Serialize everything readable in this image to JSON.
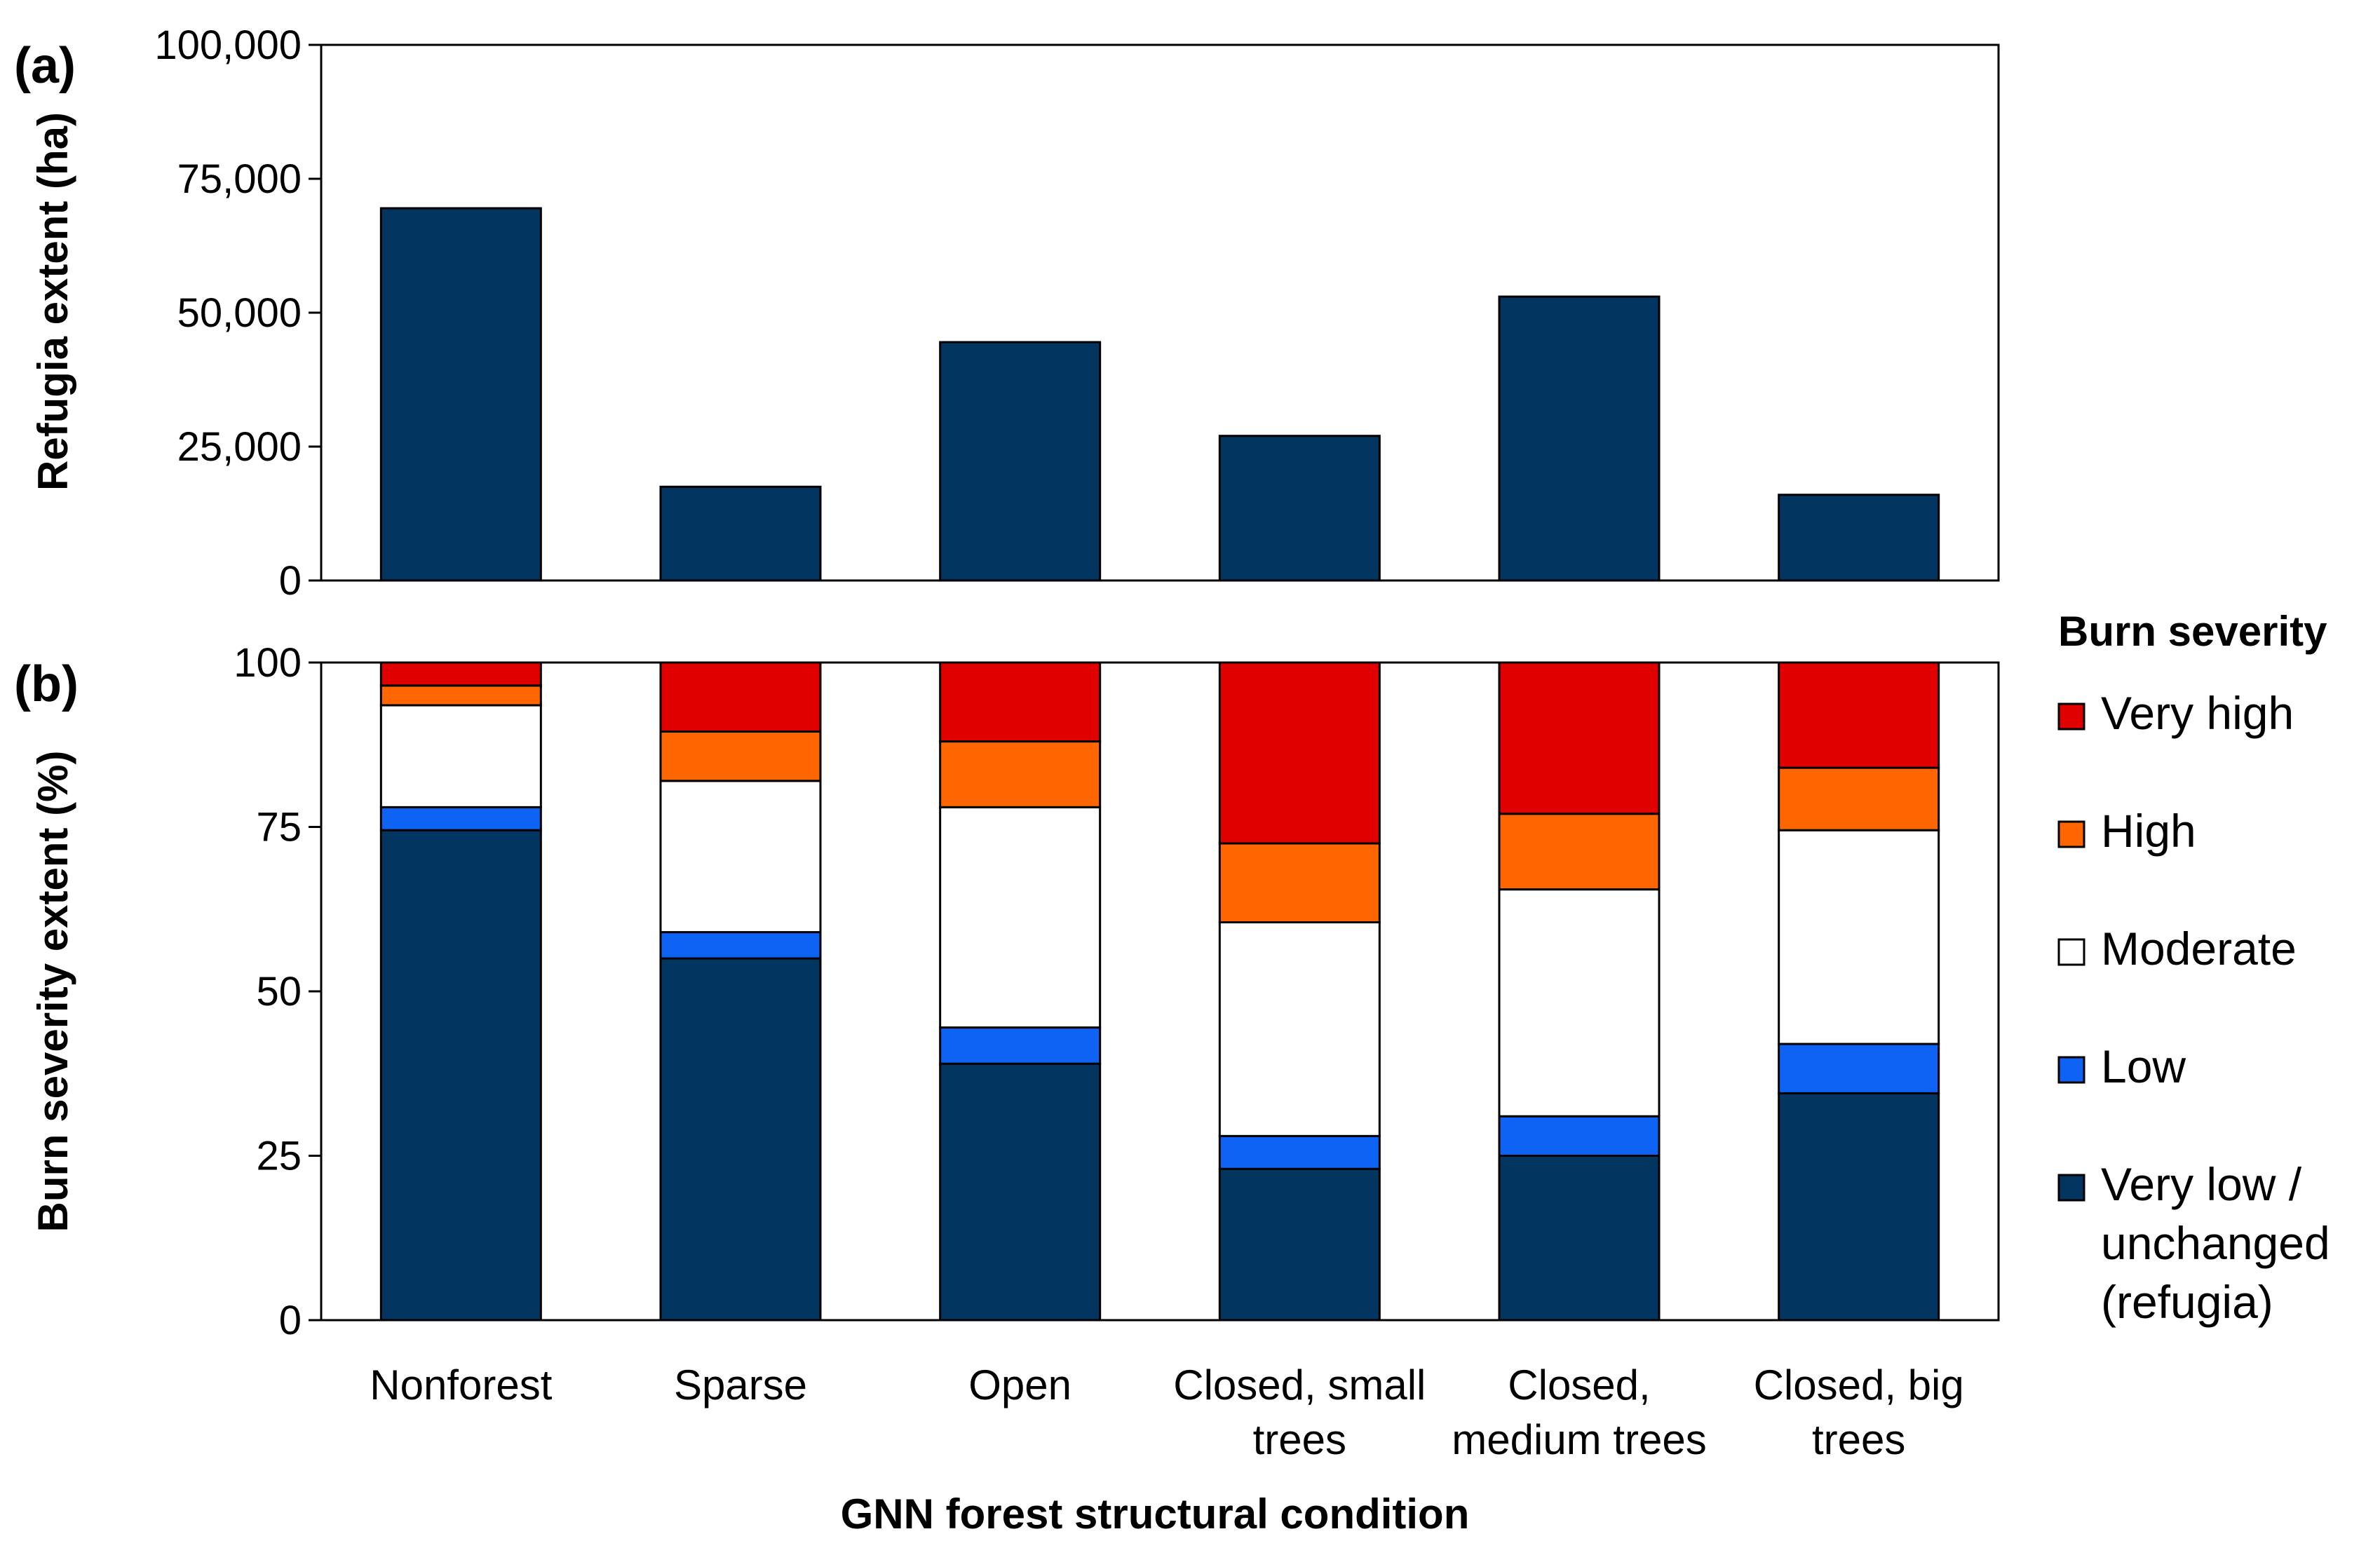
{
  "chart_data": [
    {
      "panel_label": "(a)",
      "type": "bar",
      "ylabel": "Refugia extent (ha)",
      "ylim": [
        0,
        100000
      ],
      "yticks": [
        {
          "value": 0,
          "label": "0"
        },
        {
          "value": 25000,
          "label": "25,000"
        },
        {
          "value": 50000,
          "label": "50,000"
        },
        {
          "value": 75000,
          "label": "75,000"
        },
        {
          "value": 100000,
          "label": "100,000"
        }
      ],
      "categories": [
        "Nonforest",
        "Sparse",
        "Open",
        "Closed, small trees",
        "Closed, medium trees",
        "Closed, big trees"
      ],
      "values": [
        69500,
        17500,
        44500,
        27000,
        53000,
        16000
      ],
      "bar_color": "#02355f",
      "grid": false
    },
    {
      "panel_label": "(b)",
      "type": "bar",
      "stacked": true,
      "ylabel": "Burn severity extent (%)",
      "xlabel": "GNN forest structural condition",
      "ylim": [
        0,
        100
      ],
      "yticks": [
        {
          "value": 0,
          "label": "0"
        },
        {
          "value": 25,
          "label": "25"
        },
        {
          "value": 50,
          "label": "50"
        },
        {
          "value": 75,
          "label": "75"
        },
        {
          "value": 100,
          "label": "100"
        }
      ],
      "categories": [
        {
          "lines": [
            "Nonforest"
          ]
        },
        {
          "lines": [
            "Sparse"
          ]
        },
        {
          "lines": [
            "Open"
          ]
        },
        {
          "lines": [
            "Closed, small",
            "trees"
          ]
        },
        {
          "lines": [
            "Closed,",
            "medium trees"
          ]
        },
        {
          "lines": [
            "Closed, big",
            "trees"
          ]
        }
      ],
      "series": [
        {
          "name": "Very low / unchanged (refugia)",
          "color": "#02355f",
          "values": [
            74.5,
            55,
            39,
            23,
            25,
            34.5
          ]
        },
        {
          "name": "Low",
          "color": "#0f63f4",
          "values": [
            3.5,
            4,
            5.5,
            5,
            6,
            7.5
          ]
        },
        {
          "name": "Moderate",
          "color": "#ffffff",
          "values": [
            15.5,
            23,
            33.5,
            32.5,
            34.5,
            32.5
          ]
        },
        {
          "name": "High",
          "color": "#ff6600",
          "values": [
            3,
            7.5,
            10,
            12,
            11.5,
            9.5
          ]
        },
        {
          "name": "Very high",
          "color": "#e00000",
          "values": [
            3.5,
            10.5,
            12,
            27.5,
            23,
            16
          ]
        }
      ],
      "legend": {
        "title": "Burn severity",
        "position": "right",
        "items": [
          {
            "lines": [
              "Very high"
            ],
            "color": "#e00000"
          },
          {
            "lines": [
              "High"
            ],
            "color": "#ff6600"
          },
          {
            "lines": [
              "Moderate"
            ],
            "color": "#ffffff"
          },
          {
            "lines": [
              "Low"
            ],
            "color": "#0f63f4"
          },
          {
            "lines": [
              "Very low /",
              "unchanged",
              "(refugia)"
            ],
            "color": "#02355f"
          }
        ]
      },
      "grid": false
    }
  ]
}
